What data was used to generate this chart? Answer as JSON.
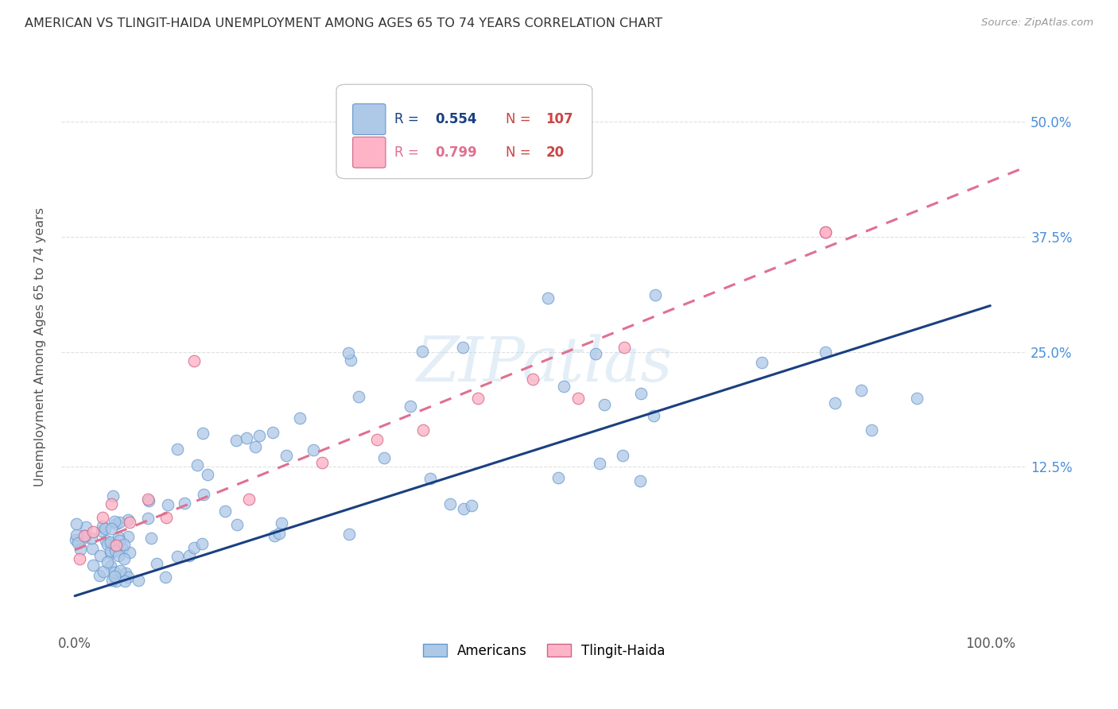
{
  "title": "AMERICAN VS TLINGIT-HAIDA UNEMPLOYMENT AMONG AGES 65 TO 74 YEARS CORRELATION CHART",
  "source": "Source: ZipAtlas.com",
  "ylabel": "Unemployment Among Ages 65 to 74 years",
  "legend_labels": [
    "Americans",
    "Tlingit-Haida"
  ],
  "american_R": 0.554,
  "american_N": 107,
  "tlingit_R": 0.799,
  "tlingit_N": 20,
  "american_color": "#aec8e8",
  "american_edge": "#6699cc",
  "tlingit_color": "#ffb3c6",
  "tlingit_edge": "#cc6688",
  "american_line_color": "#1a4080",
  "tlingit_line_color": "#e07090",
  "watermark": "ZIPatlas",
  "background_color": "#ffffff",
  "grid_color": "#dddddd",
  "ytick_color": "#4a90d9",
  "xtick_color": "#555555"
}
